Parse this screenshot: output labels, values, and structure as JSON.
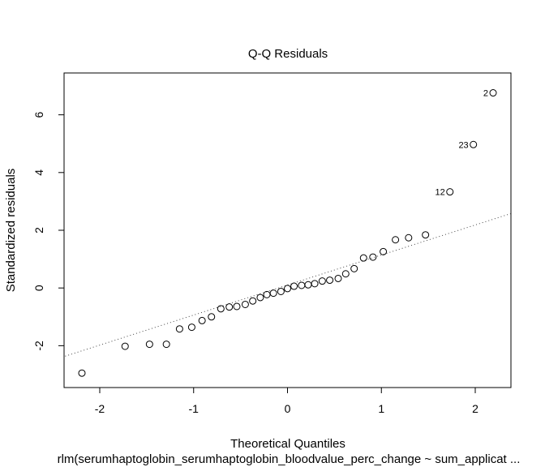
{
  "chart_data": {
    "type": "scatter",
    "title": "Q-Q Residuals",
    "xlabel": "Theoretical Quantiles",
    "ylabel": "Standardized residuals",
    "subtitle": "rlm(serumhaptoglobin_serumhaptoglobin_bloodvalue_perc_change ~ sum_applicat ...",
    "xlim": [
      -2.38,
      2.38
    ],
    "ylim": [
      -3.45,
      7.45
    ],
    "x_ticks": [
      -2,
      -1,
      0,
      1,
      2
    ],
    "y_ticks": [
      -2,
      0,
      2,
      4,
      6
    ],
    "grid": false,
    "reference_line": {
      "x1": -2.5,
      "y1": -2.5,
      "x2": 2.4,
      "y2": 2.6,
      "style": "dotted"
    },
    "points": [
      {
        "x": -2.19,
        "y": -2.95
      },
      {
        "x": -1.73,
        "y": -2.02
      },
      {
        "x": -1.47,
        "y": -1.95
      },
      {
        "x": -1.29,
        "y": -1.95
      },
      {
        "x": -1.15,
        "y": -1.42
      },
      {
        "x": -1.02,
        "y": -1.36
      },
      {
        "x": -0.91,
        "y": -1.13
      },
      {
        "x": -0.81,
        "y": -1.0
      },
      {
        "x": -0.71,
        "y": -0.72
      },
      {
        "x": -0.62,
        "y": -0.66
      },
      {
        "x": -0.54,
        "y": -0.64
      },
      {
        "x": -0.45,
        "y": -0.57
      },
      {
        "x": -0.37,
        "y": -0.45
      },
      {
        "x": -0.29,
        "y": -0.33
      },
      {
        "x": -0.22,
        "y": -0.23
      },
      {
        "x": -0.15,
        "y": -0.18
      },
      {
        "x": -0.07,
        "y": -0.12
      },
      {
        "x": 0.0,
        "y": -0.02
      },
      {
        "x": 0.07,
        "y": 0.06
      },
      {
        "x": 0.15,
        "y": 0.09
      },
      {
        "x": 0.22,
        "y": 0.11
      },
      {
        "x": 0.29,
        "y": 0.15
      },
      {
        "x": 0.37,
        "y": 0.24
      },
      {
        "x": 0.45,
        "y": 0.27
      },
      {
        "x": 0.54,
        "y": 0.33
      },
      {
        "x": 0.62,
        "y": 0.49
      },
      {
        "x": 0.71,
        "y": 0.67
      },
      {
        "x": 0.81,
        "y": 1.04
      },
      {
        "x": 0.91,
        "y": 1.07
      },
      {
        "x": 1.02,
        "y": 1.26
      },
      {
        "x": 1.15,
        "y": 1.67
      },
      {
        "x": 1.29,
        "y": 1.74
      },
      {
        "x": 1.47,
        "y": 1.84
      },
      {
        "x": 1.73,
        "y": 3.33,
        "label": "12"
      },
      {
        "x": 1.98,
        "y": 4.97,
        "label": "23"
      },
      {
        "x": 2.19,
        "y": 6.76,
        "label": "2"
      }
    ]
  }
}
